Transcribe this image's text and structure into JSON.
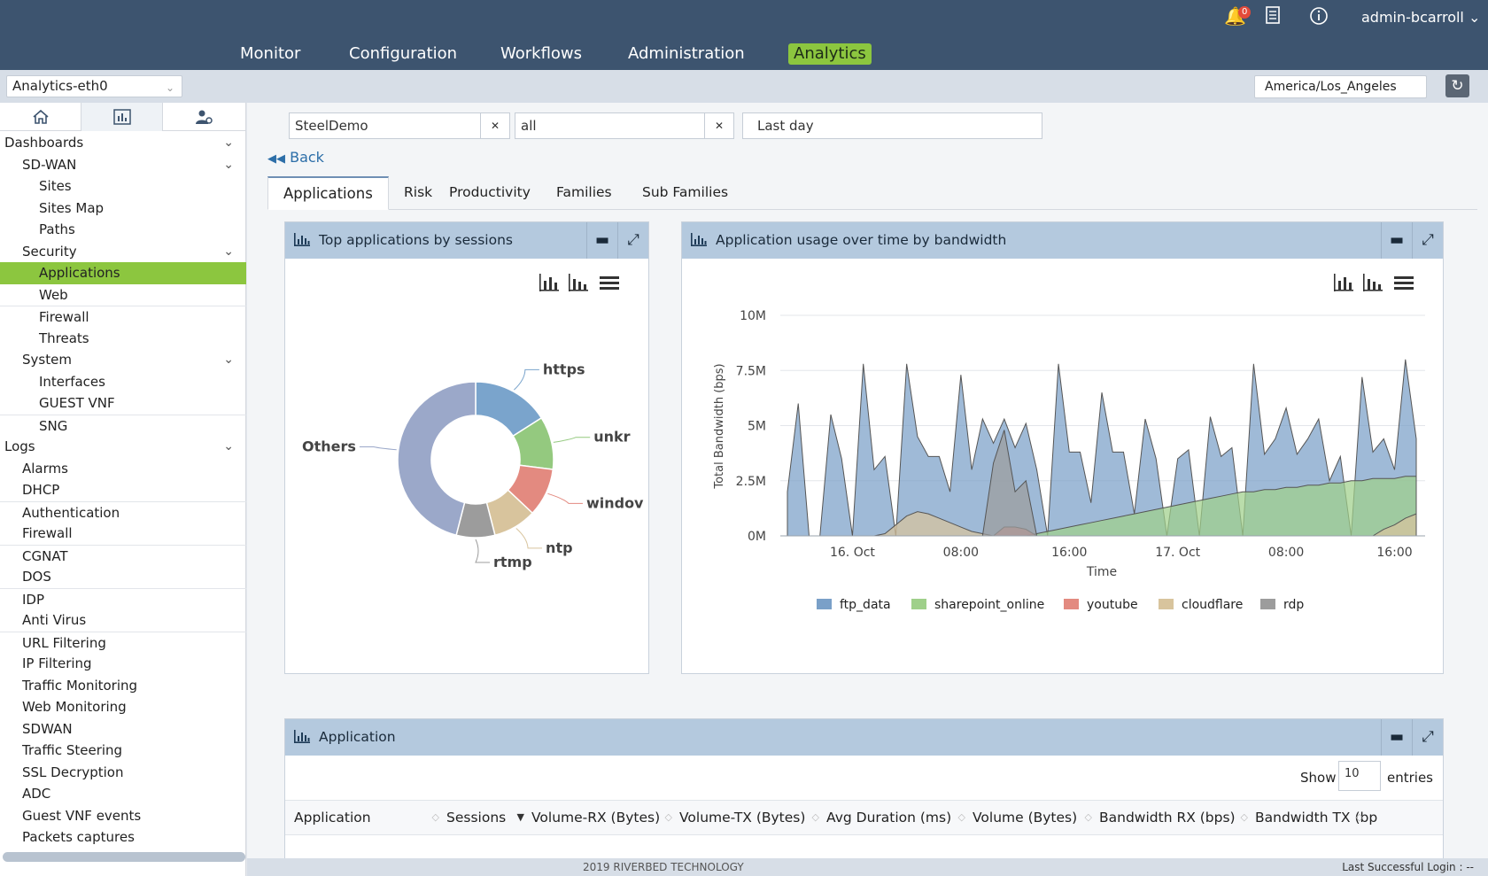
{
  "topbar": {
    "nav": [
      "Monitor",
      "Configuration",
      "Workflows",
      "Administration",
      "Analytics"
    ],
    "active_nav": "Analytics",
    "notification_count": "0",
    "user": "admin-bcarroll"
  },
  "subbar": {
    "appliance": "Analytics-eth0",
    "timezone": "America/Los_Angeles"
  },
  "sidebar": {
    "items": [
      {
        "label": "Dashboards",
        "level": 0,
        "chev": true
      },
      {
        "label": "SD-WAN",
        "level": 1,
        "chev": true
      },
      {
        "label": "Sites",
        "level": 2
      },
      {
        "label": "Sites Map",
        "level": 2
      },
      {
        "label": "Paths",
        "level": 2
      },
      {
        "label": "Security",
        "level": 1,
        "chev": true
      },
      {
        "label": "Applications",
        "level": 2,
        "active": true
      },
      {
        "label": "Web",
        "level": 2
      },
      {
        "label": "Firewall",
        "level": 2,
        "sep": true
      },
      {
        "label": "Threats",
        "level": 2
      },
      {
        "label": "System",
        "level": 1,
        "chev": true
      },
      {
        "label": "Interfaces",
        "level": 2
      },
      {
        "label": "GUEST VNF",
        "level": 2
      },
      {
        "label": "SNG",
        "level": 2,
        "sep": true
      },
      {
        "label": "Logs",
        "level": 0,
        "chev": true
      },
      {
        "label": "Alarms",
        "level": 1
      },
      {
        "label": "DHCP",
        "level": 1
      },
      {
        "label": "Authentication",
        "level": 1,
        "sep": true
      },
      {
        "label": "Firewall",
        "level": 1
      },
      {
        "label": "CGNAT",
        "level": 1,
        "sep": true
      },
      {
        "label": "DOS",
        "level": 1
      },
      {
        "label": "IDP",
        "level": 1,
        "sep": true
      },
      {
        "label": "Anti Virus",
        "level": 1
      },
      {
        "label": "URL Filtering",
        "level": 1,
        "sep": true
      },
      {
        "label": "IP Filtering",
        "level": 1
      },
      {
        "label": "Traffic Monitoring",
        "level": 1
      },
      {
        "label": "Web Monitoring",
        "level": 1
      },
      {
        "label": "SDWAN",
        "level": 1
      },
      {
        "label": "Traffic Steering",
        "level": 1
      },
      {
        "label": "SSL Decryption",
        "level": 1
      },
      {
        "label": "ADC",
        "level": 1
      },
      {
        "label": "Guest VNF events",
        "level": 1
      },
      {
        "label": "Packets captures",
        "level": 1
      }
    ]
  },
  "filters": {
    "tenant": "SteelDemo",
    "scope": "all",
    "range": "Last day"
  },
  "back_label": "Back",
  "tabs": [
    "Applications",
    "Risk",
    "Productivity",
    "Families",
    "Sub Families"
  ],
  "active_tab": "Applications",
  "panels": {
    "donut_title": "Top applications by sessions",
    "area_title": "Application usage over time by bandwidth",
    "table_title": "Application"
  },
  "chart_data": [
    {
      "type": "pie",
      "variant": "donut",
      "title": "",
      "categories": [
        "https",
        "unkr",
        "windov",
        "ntp",
        "rtmp",
        "Others"
      ],
      "values": [
        16,
        11,
        10,
        9,
        8,
        46
      ],
      "colors": [
        "#7aa4cc",
        "#94c97f",
        "#e38a80",
        "#d8c49d",
        "#9c9c9c",
        "#9ba8c9"
      ]
    },
    {
      "type": "area",
      "title": "",
      "xlabel": "Time",
      "ylabel": "Total Bandwidth (bps)",
      "ytick_labels": [
        "0M",
        "2.5M",
        "5M",
        "7.5M",
        "10M"
      ],
      "ylim": [
        0,
        10000000
      ],
      "x_tick_labels": [
        "16. Oct",
        "08:00",
        "16:00",
        "17. Oct",
        "08:00",
        "16:00"
      ],
      "x_tick_index": [
        6,
        16,
        26,
        36,
        46,
        56
      ],
      "legend": "bottom",
      "series": [
        {
          "name": "ftp_data",
          "color": "#7aa0c8",
          "values": [
            2000000,
            6000000,
            0,
            0,
            5500000,
            3500000,
            0,
            7800000,
            3000000,
            3600000,
            0,
            7800000,
            4500000,
            3600000,
            3600000,
            2000000,
            7300000,
            3000000,
            5300000,
            4200000,
            5300000,
            4000000,
            5100000,
            3000000,
            0,
            7800000,
            3800000,
            3800000,
            1500000,
            6500000,
            3800000,
            3800000,
            1000000,
            5300000,
            3500000,
            0,
            3500000,
            3900000,
            0,
            5400000,
            3600000,
            4000000,
            0,
            7800000,
            3700000,
            4400000,
            5800000,
            3700000,
            4400000,
            5300000,
            2500000,
            3600000,
            0,
            7200000,
            3800000,
            4400000,
            3000000,
            8000000,
            4400000
          ]
        },
        {
          "name": "sharepoint_online",
          "color": "#9fd08a",
          "values": [
            0,
            0,
            0,
            0,
            0,
            0,
            0,
            0,
            0,
            0,
            0,
            0,
            0,
            0,
            0,
            0,
            0,
            0,
            0,
            0,
            0,
            0,
            0,
            100000,
            200000,
            300000,
            400000,
            500000,
            600000,
            700000,
            800000,
            900000,
            1000000,
            1100000,
            1200000,
            1300000,
            1400000,
            1500000,
            1600000,
            1700000,
            1800000,
            1900000,
            2000000,
            2000000,
            2100000,
            2100000,
            2200000,
            2200000,
            2300000,
            2300000,
            2400000,
            2400000,
            2500000,
            2500000,
            2600000,
            2600000,
            2600000,
            2700000,
            2700000
          ]
        },
        {
          "name": "youtube",
          "color": "#e38a80",
          "values": [
            0,
            0,
            0,
            0,
            0,
            0,
            0,
            0,
            0,
            0,
            0,
            0,
            0,
            0,
            0,
            0,
            0,
            0,
            0,
            0,
            400000,
            400000,
            300000,
            0,
            0,
            0,
            0,
            0,
            0,
            0,
            0,
            0,
            0,
            0,
            0,
            0,
            0,
            0,
            0,
            0,
            0,
            0,
            0,
            0,
            0,
            0,
            0,
            0,
            0,
            0,
            0,
            0,
            0,
            0,
            0,
            0,
            0,
            0,
            0
          ]
        },
        {
          "name": "cloudflare",
          "color": "#d8c49d",
          "values": [
            0,
            0,
            0,
            0,
            0,
            0,
            0,
            0,
            0,
            100000,
            500000,
            900000,
            1100000,
            1000000,
            800000,
            600000,
            400000,
            200000,
            100000,
            0,
            0,
            0,
            0,
            0,
            0,
            0,
            0,
            0,
            0,
            0,
            0,
            0,
            0,
            0,
            0,
            0,
            0,
            0,
            0,
            0,
            0,
            0,
            0,
            0,
            0,
            0,
            0,
            0,
            0,
            0,
            0,
            0,
            0,
            0,
            0,
            300000,
            500000,
            800000,
            1000000
          ]
        },
        {
          "name": "rdp",
          "color": "#9c9c9c",
          "values": [
            0,
            0,
            0,
            0,
            0,
            0,
            0,
            0,
            0,
            0,
            0,
            0,
            0,
            0,
            0,
            0,
            0,
            0,
            0,
            3300000,
            4800000,
            2000000,
            2500000,
            0,
            0,
            0,
            0,
            0,
            0,
            0,
            0,
            0,
            0,
            0,
            0,
            0,
            0,
            0,
            0,
            0,
            0,
            0,
            0,
            0,
            0,
            0,
            0,
            0,
            0,
            0,
            0,
            0,
            0,
            0,
            0,
            0,
            0,
            0,
            0
          ]
        }
      ]
    }
  ],
  "table": {
    "show_label": "Show",
    "entries_value": "10",
    "entries_label": "entries",
    "columns": [
      "Application",
      "Sessions",
      "Volume-RX (Bytes)",
      "Volume-TX (Bytes)",
      "Avg Duration (ms)",
      "Volume (Bytes)",
      "Bandwidth RX (bps)",
      "Bandwidth TX (bp"
    ]
  },
  "footer": {
    "copyright": "2019 RIVERBED TECHNOLOGY",
    "last_login": "Last Successful Login : --"
  }
}
